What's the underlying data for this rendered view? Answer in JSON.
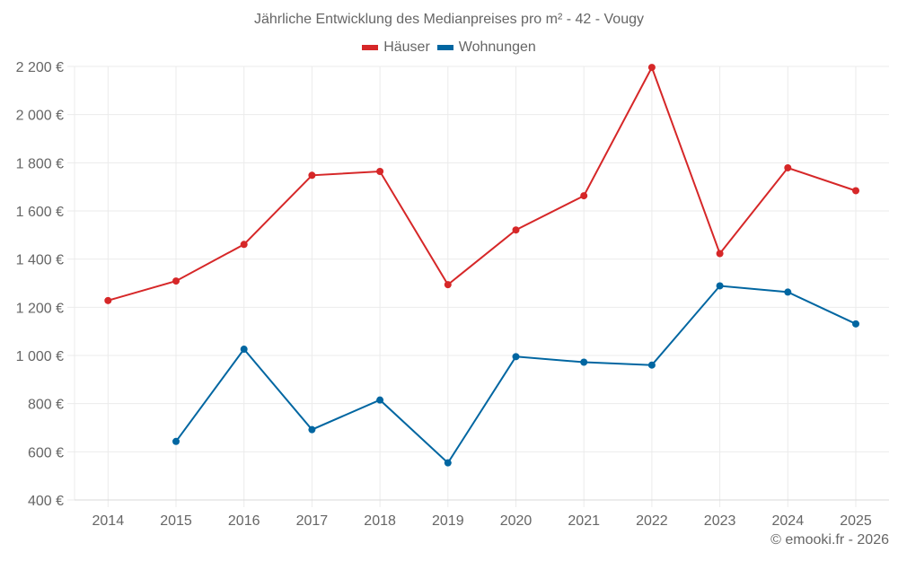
{
  "chart_data": {
    "type": "line",
    "title": "Jährliche Entwicklung des Medianpreises pro m² - 42 - Vougy",
    "xlabel": "",
    "ylabel": "",
    "categories": [
      "2014",
      "2015",
      "2016",
      "2017",
      "2018",
      "2019",
      "2020",
      "2021",
      "2022",
      "2023",
      "2024",
      "2025"
    ],
    "series": [
      {
        "name": "Häuser",
        "color": "#d62728",
        "values": [
          1228,
          1309,
          1461,
          1748,
          1764,
          1294,
          1521,
          1663,
          2196,
          1423,
          1779,
          1684
        ]
      },
      {
        "name": "Wohnungen",
        "color": "#0066a1",
        "values": [
          null,
          643,
          1026,
          692,
          815,
          554,
          995,
          972,
          960,
          1289,
          1263,
          1131
        ]
      }
    ],
    "ylim": [
      400,
      2200
    ],
    "yticks": [
      400,
      600,
      800,
      1000,
      1200,
      1400,
      1600,
      1800,
      2000,
      2200
    ],
    "ytick_labels": [
      "400 €",
      "600 €",
      "800 €",
      "1 000 €",
      "1 200 €",
      "1 400 €",
      "1 600 €",
      "1 800 €",
      "2 000 €",
      "2 200 €"
    ],
    "grid": true,
    "legend_position": "top"
  },
  "legend": {
    "items": [
      {
        "label": "Häuser",
        "color": "#d62728"
      },
      {
        "label": "Wohnungen",
        "color": "#0066a1"
      }
    ]
  },
  "footer": {
    "credit": "© emooki.fr - 2026"
  },
  "colors": {
    "grid": "#ebebeb",
    "axis": "#d9d9d9",
    "text": "#666666"
  }
}
